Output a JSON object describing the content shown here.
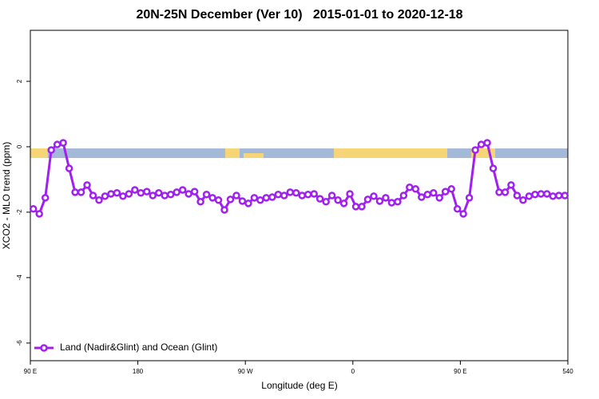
{
  "chart_data": {
    "type": "line",
    "title": "20N-25N December (Ver 10)   2015-01-01 to 2020-12-18",
    "x_label": "Longitude (deg E)",
    "y_label": "XCO2 - MLO trend (ppm)",
    "xlim": [
      90,
      540
    ],
    "xticks": [
      {
        "value": 90,
        "label": "90 E"
      },
      180,
      {
        "value": 270,
        "label": "90 W"
      },
      {
        "value": 360,
        "label": "0"
      },
      {
        "value": 450,
        "label": "90 E"
      },
      540
    ],
    "ylim": [
      -6.54,
      3.56
    ],
    "yticks": [
      2,
      0,
      -2,
      -4,
      -6
    ],
    "legend": "bottom-left",
    "x": [
      92.5,
      97.5,
      102.5,
      107.5,
      112.5,
      117.5,
      122.5,
      127.5,
      132.5,
      137.5,
      142.5,
      147.5,
      152.5,
      157.5,
      162.5,
      167.5,
      172.5,
      177.5,
      182.5,
      187.5,
      192.5,
      197.5,
      202.5,
      207.5,
      212.5,
      217.5,
      222.5,
      227.5,
      232.5,
      237.5,
      242.5,
      247.5,
      252.5,
      257.5,
      262.5,
      267.5,
      272.5,
      277.5,
      282.5,
      287.5,
      292.5,
      297.5,
      302.5,
      307.5,
      312.5,
      317.5,
      322.5,
      327.5,
      332.5,
      337.5,
      342.5,
      347.5,
      352.5,
      357.5,
      362.5,
      367.5,
      372.5,
      377.5,
      382.5,
      387.5,
      392.5,
      397.5,
      402.5,
      407.5,
      412.5,
      417.5,
      422.5,
      427.5,
      432.5,
      437.5,
      442.5,
      447.5,
      452.5,
      457.5,
      462.5,
      467.5,
      472.5,
      477.5,
      482.5,
      487.5,
      492.5,
      497.5,
      502.5,
      507.5,
      512.5,
      517.5,
      522.5,
      527.5,
      532.5,
      537.5
    ],
    "series": [
      {
        "name": "Land (Nadir&Glint) and Ocean (Glint)",
        "color": "#a020f0",
        "values": [
          -1.9,
          -2.05,
          -1.56,
          -0.1,
          0.07,
          0.12,
          -0.66,
          -1.39,
          -1.39,
          -1.17,
          -1.49,
          -1.63,
          -1.51,
          -1.44,
          -1.41,
          -1.51,
          -1.44,
          -1.32,
          -1.41,
          -1.37,
          -1.49,
          -1.41,
          -1.49,
          -1.46,
          -1.39,
          -1.32,
          -1.44,
          -1.37,
          -1.68,
          -1.46,
          -1.56,
          -1.63,
          -1.93,
          -1.61,
          -1.49,
          -1.66,
          -1.73,
          -1.56,
          -1.63,
          -1.56,
          -1.54,
          -1.46,
          -1.49,
          -1.39,
          -1.41,
          -1.49,
          -1.46,
          -1.44,
          -1.59,
          -1.68,
          -1.49,
          -1.63,
          -1.73,
          -1.44,
          -1.83,
          -1.83,
          -1.61,
          -1.51,
          -1.66,
          -1.56,
          -1.71,
          -1.68,
          -1.49,
          -1.24,
          -1.29,
          -1.54,
          -1.46,
          -1.41,
          -1.56,
          -1.37,
          -1.29,
          -1.9,
          -2.05,
          -1.56,
          -0.1,
          0.07,
          0.12,
          -0.66,
          -1.39,
          -1.39,
          -1.17,
          -1.49,
          -1.63,
          -1.51,
          -1.46,
          -1.44,
          -1.44,
          -1.51,
          -1.49,
          -1.49
        ]
      }
    ]
  }
}
